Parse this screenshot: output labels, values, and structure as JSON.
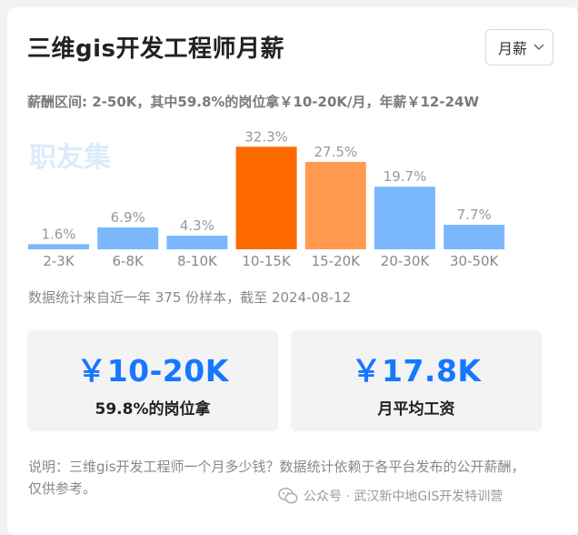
{
  "header": {
    "title": "三维gis开发工程师月薪",
    "period_select": "月薪"
  },
  "summary": "薪酬区间: 2-50K，其中59.8%的岗位拿￥10-20K/月，年薪￥12-24W",
  "watermark": "职友集",
  "chart_data": {
    "type": "bar",
    "categories": [
      "2-3K",
      "6-8K",
      "8-10K",
      "10-15K",
      "15-20K",
      "20-30K",
      "30-50K"
    ],
    "values": [
      1.6,
      6.9,
      4.3,
      32.3,
      27.5,
      19.7,
      7.7
    ],
    "value_labels": [
      "1.6%",
      "6.9%",
      "4.3%",
      "32.3%",
      "27.5%",
      "19.7%",
      "7.7%"
    ],
    "colors": [
      "#7ab8fb",
      "#7ab8fb",
      "#7ab8fb",
      "#ff6a00",
      "#ff9a4f",
      "#7ab8fb",
      "#7ab8fb"
    ],
    "unit": "%"
  },
  "sample_note": "数据统计来自近一年 375 份样本，截至 2024-08-12",
  "stats": [
    {
      "value": "￥10-20K",
      "label": "59.8%的岗位拿"
    },
    {
      "value": "￥17.8K",
      "label": "月平均工资"
    }
  ],
  "note": "说明：三维gis开发工程师一个月多少钱？数据统计依赖于各平台发布的公开薪酬，仅供参考。",
  "footer": {
    "wechat_text": "公众号 · 武汉新中地GIS开发特训营"
  },
  "colors": {
    "accent": "#1677ff",
    "highlight_bar": "#ff6a00",
    "secondary_bar": "#ff9a4f",
    "default_bar": "#7ab8fb"
  }
}
